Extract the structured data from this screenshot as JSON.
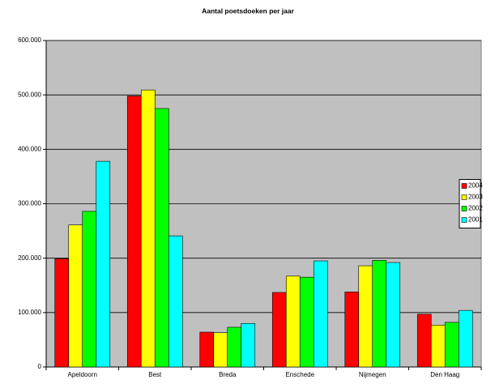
{
  "chart_data": {
    "type": "bar",
    "title": "Aantal poetsdoeken per jaar",
    "categories": [
      "Apeldoorn",
      "Best",
      "Breda",
      "Enschede",
      "Nijmegen",
      "Den Haag"
    ],
    "series": [
      {
        "name": "2004",
        "color": "#ff0000",
        "values": [
          199000,
          498000,
          64000,
          137000,
          138000,
          97000
        ]
      },
      {
        "name": "2003",
        "color": "#ffff00",
        "values": [
          261000,
          509000,
          63000,
          167000,
          186000,
          77000
        ]
      },
      {
        "name": "2002",
        "color": "#00ff00",
        "values": [
          286000,
          475000,
          73000,
          165000,
          196000,
          82000
        ]
      },
      {
        "name": "2001",
        "color": "#00ffff",
        "values": [
          378000,
          241000,
          80000,
          195000,
          192000,
          104000
        ]
      }
    ],
    "ylim": [
      0,
      600000
    ],
    "yticks": [
      0,
      {
        "value": 100000,
        "label": "100.000"
      },
      {
        "value": 200000,
        "label": "200.000"
      },
      {
        "value": 300000,
        "label": "300.000"
      },
      {
        "value": 400000,
        "label": "400.000"
      },
      {
        "value": 500000,
        "label": "500.000"
      },
      {
        "value": 600000,
        "label": "600.000"
      }
    ],
    "grid": true,
    "legend": "right",
    "plot_background": "#c0c0c0"
  }
}
